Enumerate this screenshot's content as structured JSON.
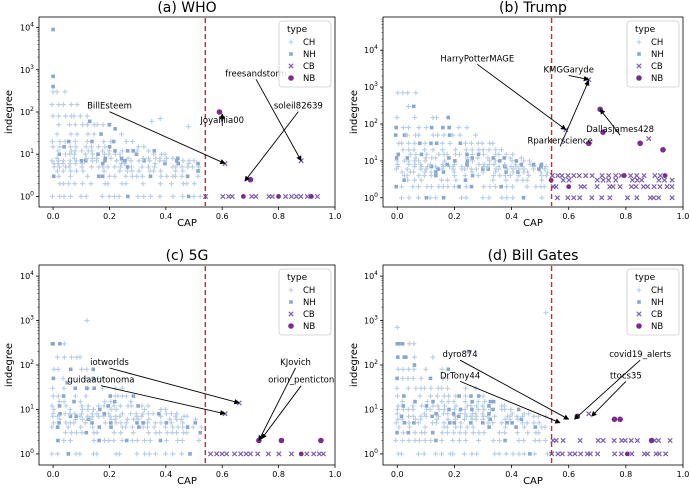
{
  "chart_data": [
    {
      "type": "scatter",
      "title": "(a) WHO",
      "xlabel": "CAP",
      "ylabel": "indegree",
      "xlim": [
        -0.05,
        1.0
      ],
      "ylim_log10": [
        -0.25,
        4.25
      ],
      "x_ticks": [
        "0.0",
        "0.2",
        "0.4",
        "0.6",
        "0.8",
        "1.0"
      ],
      "y_ticks": [
        "10^0",
        "10^1",
        "10^2",
        "10^3",
        "10^4"
      ],
      "threshold_x": 0.54,
      "legend": {
        "title": "type",
        "position": "top-right",
        "entries": [
          "CH",
          "NH",
          "CB",
          "NB"
        ]
      },
      "colors": {
        "CH": "#b8cde6",
        "NH": "#8aa8cf",
        "CB": "#7a5fb0",
        "NB": "#7b2d8e",
        "threshold": "#e02020"
      },
      "density": 0.55,
      "highlights": [
        {
          "type": "NH",
          "x": 0.0,
          "y": 9000
        },
        {
          "type": "NH",
          "x": 0.0,
          "y": 700
        },
        {
          "type": "NH",
          "x": 0.0,
          "y": 400
        },
        {
          "type": "NH",
          "x": 0.13,
          "y": 60
        },
        {
          "type": "NH",
          "x": 0.17,
          "y": 30
        },
        {
          "type": "NH",
          "x": 0.22,
          "y": 40
        },
        {
          "type": "CH",
          "x": 0.35,
          "y": 60
        },
        {
          "type": "CH",
          "x": 0.38,
          "y": 70
        },
        {
          "type": "CH",
          "x": 0.48,
          "y": 45
        },
        {
          "type": "NB",
          "x": 0.59,
          "y": 100
        },
        {
          "type": "CB",
          "x": 0.61,
          "y": 6
        },
        {
          "type": "CB",
          "x": 0.88,
          "y": 7
        },
        {
          "type": "NB",
          "x": 0.7,
          "y": 2.5
        }
      ],
      "annotations": [
        {
          "label": "BillEsteem",
          "x": 0.61,
          "y": 6,
          "tx": 0.2,
          "ty": 120
        },
        {
          "label": "freesandstorm",
          "x": 0.88,
          "y": 7,
          "tx": 0.72,
          "ty": 700
        },
        {
          "label": "soleil82639",
          "x": 0.68,
          "y": 2.3,
          "tx": 0.87,
          "ty": 120
        },
        {
          "label": "JoyaMia00",
          "x": 0.6,
          "y": 90,
          "tx": 0.6,
          "ty": 55
        }
      ]
    },
    {
      "type": "scatter",
      "title": "(b) Trump",
      "xlabel": "CAP",
      "ylabel": "indegree",
      "xlim": [
        -0.05,
        1.0
      ],
      "ylim_log10": [
        -0.25,
        4.9
      ],
      "x_ticks": [
        "0.0",
        "0.2",
        "0.4",
        "0.6",
        "0.8",
        "1.0"
      ],
      "y_ticks": [
        "10^0",
        "10^1",
        "10^2",
        "10^3",
        "10^4"
      ],
      "threshold_x": 0.54,
      "legend": {
        "title": "type",
        "position": "top-right",
        "entries": [
          "CH",
          "NH",
          "CB",
          "NB"
        ]
      },
      "colors": {
        "CH": "#b8cde6",
        "NH": "#8aa8cf",
        "CB": "#7a5fb0",
        "NB": "#7b2d8e",
        "threshold": "#e02020"
      },
      "density": 1.6,
      "highlights": [
        {
          "type": "CB",
          "x": 0.59,
          "y": 70
        },
        {
          "type": "NB",
          "x": 0.67,
          "y": 30
        },
        {
          "type": "CB",
          "x": 0.67,
          "y": 1600
        },
        {
          "type": "NB",
          "x": 0.71,
          "y": 250
        },
        {
          "type": "NB",
          "x": 0.72,
          "y": 60
        },
        {
          "type": "NB",
          "x": 0.85,
          "y": 30
        },
        {
          "type": "CB",
          "x": 0.88,
          "y": 40
        },
        {
          "type": "NB",
          "x": 0.93,
          "y": 20
        }
      ],
      "annotations": [
        {
          "label": "HarryPotterMAGE",
          "x": 0.59,
          "y": 70,
          "tx": 0.28,
          "ty": 5000
        },
        {
          "label": "KMGGaryde",
          "x": 0.67,
          "y": 1600,
          "tx": 0.6,
          "ty": 2500
        },
        {
          "label": "Dallasjames428",
          "x": 0.71,
          "y": 250,
          "tx": 0.78,
          "ty": 60
        },
        {
          "label": "Rparkerscience",
          "x": 0.67,
          "y": 1500,
          "tx": 0.57,
          "ty": 30
        }
      ]
    },
    {
      "type": "scatter",
      "title": "(c) 5G",
      "xlabel": "CAP",
      "ylabel": "indegree",
      "xlim": [
        -0.05,
        1.0
      ],
      "ylim_log10": [
        -0.25,
        4.25
      ],
      "x_ticks": [
        "0.0",
        "0.2",
        "0.4",
        "0.6",
        "0.8",
        "1.0"
      ],
      "y_ticks": [
        "10^0",
        "10^1",
        "10^2",
        "10^3",
        "10^4"
      ],
      "threshold_x": 0.54,
      "legend": {
        "title": "type",
        "position": "top-right",
        "entries": [
          "CH",
          "NH",
          "CB",
          "NB"
        ]
      },
      "colors": {
        "CH": "#b8cde6",
        "NH": "#8aa8cf",
        "CB": "#7a5fb0",
        "NB": "#7b2d8e",
        "threshold": "#e02020"
      },
      "density": 0.55,
      "highlights": [
        {
          "type": "NH",
          "x": 0.0,
          "y": 300
        },
        {
          "type": "NH",
          "x": 0.05,
          "y": 40
        },
        {
          "type": "NH",
          "x": 0.12,
          "y": 30
        },
        {
          "type": "CH",
          "x": 0.23,
          "y": 20
        },
        {
          "type": "CH",
          "x": 0.12,
          "y": 1000
        },
        {
          "type": "CB",
          "x": 0.61,
          "y": 8
        },
        {
          "type": "CB",
          "x": 0.66,
          "y": 14
        },
        {
          "type": "NB",
          "x": 0.73,
          "y": 2
        },
        {
          "type": "NB",
          "x": 0.81,
          "y": 2
        },
        {
          "type": "NB",
          "x": 0.95,
          "y": 2
        }
      ],
      "annotations": [
        {
          "label": "iotworlds",
          "x": 0.66,
          "y": 14,
          "tx": 0.2,
          "ty": 100
        },
        {
          "label": "guidaautonoma",
          "x": 0.61,
          "y": 8,
          "tx": 0.17,
          "ty": 40
        },
        {
          "label": "KJovich",
          "x": 0.73,
          "y": 2,
          "tx": 0.86,
          "ty": 100
        },
        {
          "label": "orion_penticton",
          "x": 0.74,
          "y": 2.2,
          "tx": 0.88,
          "ty": 40
        }
      ]
    },
    {
      "type": "scatter",
      "title": "(d) Bill Gates",
      "xlabel": "CAP",
      "ylabel": "indegree",
      "xlim": [
        -0.05,
        1.0
      ],
      "ylim_log10": [
        -0.25,
        4.25
      ],
      "x_ticks": [
        "0.0",
        "0.2",
        "0.4",
        "0.6",
        "0.8",
        "1.0"
      ],
      "y_ticks": [
        "10^0",
        "10^1",
        "10^2",
        "10^3",
        "10^4"
      ],
      "threshold_x": 0.54,
      "legend": {
        "title": "type",
        "position": "top-right",
        "entries": [
          "CH",
          "NH",
          "CB",
          "NB"
        ]
      },
      "colors": {
        "CH": "#b8cde6",
        "NH": "#8aa8cf",
        "CB": "#7a5fb0",
        "NB": "#7b2d8e",
        "threshold": "#e02020"
      },
      "density": 0.8,
      "highlights": [
        {
          "type": "CH",
          "x": 0.52,
          "y": 1500
        },
        {
          "type": "NH",
          "x": 0.0,
          "y": 300
        },
        {
          "type": "NH",
          "x": 0.03,
          "y": 150
        },
        {
          "type": "NH",
          "x": 0.06,
          "y": 100
        },
        {
          "type": "NH",
          "x": 0.25,
          "y": 200
        },
        {
          "type": "NB",
          "x": 0.63,
          "y": 7
        },
        {
          "type": "CB",
          "x": 0.67,
          "y": 8
        },
        {
          "type": "NB",
          "x": 0.76,
          "y": 6
        },
        {
          "type": "NB",
          "x": 0.78,
          "y": 6
        },
        {
          "type": "NB",
          "x": 0.89,
          "y": 2
        }
      ],
      "annotations": [
        {
          "label": "dyro874",
          "x": 0.6,
          "y": 6,
          "tx": 0.22,
          "ty": 150
        },
        {
          "label": "DrTony44",
          "x": 0.57,
          "y": 5,
          "tx": 0.22,
          "ty": 50
        },
        {
          "label": "covid19_alerts",
          "x": 0.62,
          "y": 6,
          "tx": 0.85,
          "ty": 150
        },
        {
          "label": "ttocs35",
          "x": 0.68,
          "y": 7,
          "tx": 0.8,
          "ty": 50
        }
      ]
    }
  ]
}
